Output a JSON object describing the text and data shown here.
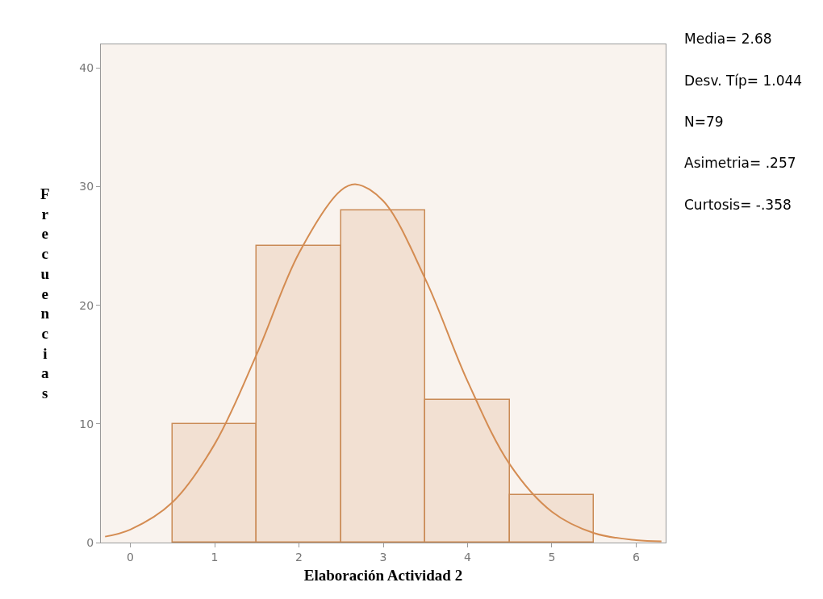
{
  "chart_data": {
    "type": "histogram",
    "xlabel": "Elaboración Actividad 2",
    "ylabel": "Frecuencias",
    "bins": [
      0.5,
      1.5,
      2.5,
      3.5,
      4.5,
      5.5
    ],
    "values": [
      10,
      25,
      28,
      12,
      4
    ],
    "color": "#f2e0d2",
    "series": [
      {
        "type": "line",
        "color": "#d48c52",
        "x": [
          -0.3,
          0,
          0.5,
          1,
          1.5,
          2,
          2.5,
          2.68,
          3,
          3.5,
          4,
          4.5,
          5,
          5.5,
          6,
          6.3
        ],
        "values": [
          0.5,
          1.1,
          3.4,
          8.3,
          15.9,
          24.4,
          29.7,
          30.2,
          28.8,
          22.2,
          13.6,
          6.6,
          2.6,
          0.8,
          0.2,
          0.1
        ]
      }
    ],
    "xlim": [
      -0.35,
      6.35
    ],
    "ylim": [
      0,
      42
    ],
    "xticks": [
      0,
      1,
      2,
      3,
      4,
      5,
      6
    ],
    "yticks": [
      0,
      10,
      20,
      30,
      40
    ],
    "grid": false,
    "annotations": [
      "Media= 2.68",
      "Desv. Típ= 1.044",
      "N=79",
      "Asimetria= .257",
      "Curtosis= -.358"
    ]
  }
}
